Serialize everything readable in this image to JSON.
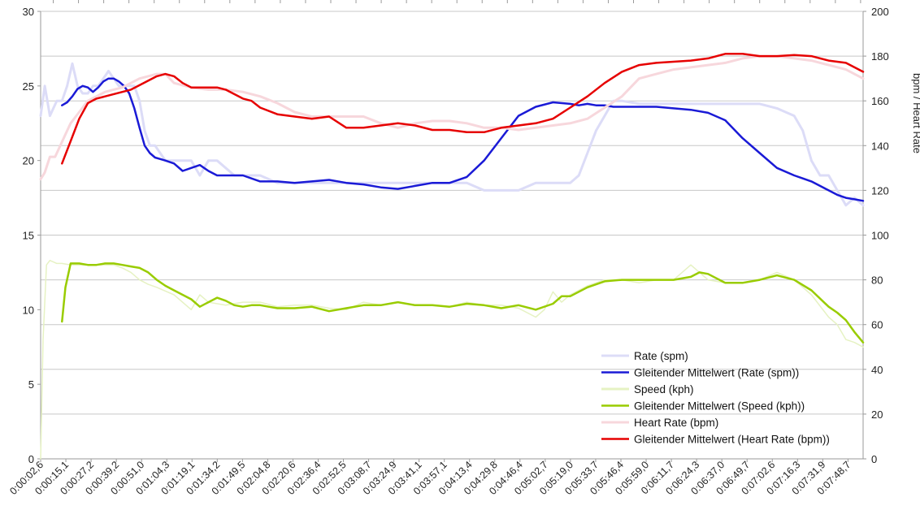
{
  "chart_data": {
    "type": "line",
    "title": "",
    "xlabel": "",
    "ylabel_left": "",
    "ylabel_right": "bpm / Heart Rate",
    "ylim_left": [
      0,
      30
    ],
    "ylim_right": [
      0,
      200
    ],
    "yticks_left": [
      "0",
      "5",
      "10",
      "15",
      "20",
      "25",
      "30"
    ],
    "yticks_right": [
      "0",
      "20",
      "40",
      "60",
      "80",
      "100",
      "120",
      "140",
      "160",
      "180",
      "200"
    ],
    "grid": true,
    "legend_position": "bottom-right",
    "x_tick_labels": [
      "0:00:02,6",
      "0:00:15,1",
      "0:00:27,2",
      "0:00:39,2",
      "0:00:51,0",
      "0:01:04,3",
      "0:01:19,1",
      "0:01:34,2",
      "0:01:49,5",
      "0:02:04,8",
      "0:02:20,6",
      "0:02:36,4",
      "0:02:52,5",
      "0:03:08,7",
      "0:03:24,9",
      "0:03:41,1",
      "0:03:57,1",
      "0:04:13,4",
      "0:04:29,8",
      "0:04:46,4",
      "0:05:02,7",
      "0:05:19,0",
      "0:05:33,7",
      "0:05:46,4",
      "0:05:59,0",
      "0:06:11,7",
      "0:06:24,3",
      "0:06:37,0",
      "0:06:49,7",
      "0:07:02,6",
      "0:07:16,3",
      "0:07:31,9",
      "0:07:48,7"
    ],
    "x_span": [
      2.6,
      480
    ],
    "series": [
      {
        "name": "Rate (spm)",
        "axis": "left",
        "color": "#dcdcf7",
        "width": 3,
        "x": [
          2.6,
          5,
          8,
          12,
          15,
          18,
          21,
          24,
          27,
          30,
          33,
          36,
          39,
          42,
          45,
          48,
          51,
          54,
          57,
          60,
          63,
          66,
          69,
          72,
          75,
          80,
          85,
          90,
          95,
          100,
          105,
          110,
          115,
          120,
          130,
          140,
          150,
          160,
          170,
          180,
          190,
          200,
          210,
          220,
          230,
          240,
          250,
          260,
          270,
          280,
          290,
          300,
          310,
          315,
          320,
          325,
          330,
          335,
          340,
          350,
          360,
          370,
          380,
          390,
          400,
          410,
          420,
          430,
          440,
          445,
          450,
          455,
          460,
          465,
          470,
          475,
          480
        ],
        "y": [
          23,
          25,
          23,
          24,
          24,
          25,
          26.5,
          25,
          24.5,
          24.5,
          25,
          25,
          25.5,
          26,
          25.5,
          25,
          25,
          25,
          25,
          24,
          22,
          21,
          21,
          20.5,
          20,
          20,
          20,
          20,
          19,
          20,
          20,
          19.5,
          19,
          19,
          19,
          18.5,
          18.5,
          18.5,
          18.5,
          18.5,
          18.5,
          18.5,
          18.5,
          18.5,
          18.5,
          18.5,
          18.5,
          18,
          18,
          18,
          18.5,
          18.5,
          18.5,
          19,
          20.5,
          22,
          23,
          24,
          24,
          23.8,
          23.8,
          23.8,
          23.8,
          23.8,
          23.8,
          23.8,
          23.8,
          23.5,
          23,
          22,
          20,
          19,
          19,
          18,
          17,
          17.5,
          17
        ]
      },
      {
        "name": "Gleitender Mittelwert (Rate (spm))",
        "axis": "left",
        "color": "#1a1ad6",
        "width": 2.5,
        "x": [
          15,
          18,
          21,
          24,
          27,
          30,
          33,
          36,
          39,
          42,
          45,
          48,
          51,
          54,
          57,
          60,
          63,
          66,
          69,
          72,
          75,
          80,
          85,
          90,
          95,
          100,
          105,
          110,
          115,
          120,
          130,
          140,
          150,
          160,
          170,
          180,
          190,
          200,
          210,
          220,
          230,
          240,
          250,
          260,
          270,
          280,
          290,
          300,
          310,
          315,
          320,
          325,
          330,
          335,
          340,
          350,
          360,
          370,
          380,
          390,
          400,
          410,
          420,
          430,
          440,
          445,
          450,
          455,
          460,
          465,
          470,
          475,
          480
        ],
        "y": [
          23.7,
          23.9,
          24.3,
          24.8,
          25,
          24.9,
          24.6,
          24.9,
          25.3,
          25.5,
          25.5,
          25.3,
          25,
          24.5,
          23.5,
          22.2,
          21,
          20.5,
          20.2,
          20.1,
          20,
          19.8,
          19.3,
          19.5,
          19.7,
          19.3,
          19,
          19,
          19,
          19,
          18.6,
          18.6,
          18.5,
          18.6,
          18.7,
          18.5,
          18.4,
          18.2,
          18.1,
          18.3,
          18.5,
          18.5,
          18.9,
          20,
          21.5,
          23,
          23.6,
          23.9,
          23.8,
          23.7,
          23.8,
          23.7,
          23.7,
          23.6,
          23.6,
          23.6,
          23.6,
          23.5,
          23.4,
          23.2,
          22.7,
          21.5,
          20.5,
          19.5,
          19,
          18.8,
          18.6,
          18.3,
          18,
          17.7,
          17.5,
          17.4,
          17.3
        ]
      },
      {
        "name": "Speed (kph)",
        "axis": "left",
        "color": "#e6f2c3",
        "width": 1.5,
        "x": [
          2.6,
          4,
          6,
          8,
          10,
          12,
          15,
          20,
          25,
          30,
          35,
          40,
          45,
          50,
          55,
          60,
          65,
          70,
          80,
          90,
          95,
          100,
          110,
          120,
          130,
          140,
          150,
          160,
          170,
          180,
          190,
          200,
          210,
          220,
          230,
          240,
          250,
          260,
          270,
          280,
          290,
          295,
          300,
          305,
          310,
          320,
          330,
          340,
          350,
          360,
          370,
          380,
          385,
          390,
          400,
          410,
          420,
          430,
          440,
          450,
          460,
          465,
          470,
          475,
          480
        ],
        "y": [
          0,
          8,
          13,
          13.3,
          13.2,
          13.1,
          13.1,
          13,
          13,
          13,
          13,
          13,
          13,
          12.8,
          12.5,
          12,
          11.7,
          11.5,
          11,
          10,
          11,
          10.5,
          10.3,
          10.5,
          10.5,
          10.2,
          10.3,
          10.3,
          10.1,
          10,
          10.5,
          10.3,
          10.5,
          10.3,
          10.3,
          10.2,
          10.5,
          10.3,
          10.3,
          10.1,
          9.5,
          10,
          11.2,
          10.5,
          11,
          11.6,
          12,
          12,
          11.8,
          12,
          12,
          13,
          12.5,
          12,
          11.8,
          11.8,
          12,
          12.5,
          12,
          11,
          9.5,
          9,
          8,
          7.8,
          7.5
        ]
      },
      {
        "name": "Gleitender Mittelwert (Speed (kph))",
        "axis": "left",
        "color": "#99cc00",
        "width": 2.5,
        "x": [
          15,
          17,
          20,
          25,
          30,
          35,
          40,
          45,
          50,
          55,
          60,
          65,
          70,
          75,
          80,
          85,
          90,
          95,
          100,
          105,
          110,
          115,
          120,
          125,
          130,
          135,
          140,
          150,
          160,
          170,
          180,
          190,
          200,
          210,
          220,
          230,
          240,
          250,
          260,
          270,
          280,
          290,
          300,
          305,
          310,
          320,
          330,
          340,
          350,
          360,
          370,
          380,
          385,
          390,
          395,
          400,
          410,
          420,
          430,
          440,
          450,
          460,
          465,
          470,
          475,
          480
        ],
        "y": [
          9.2,
          11.5,
          13.1,
          13.1,
          13,
          13,
          13.1,
          13.1,
          13,
          12.9,
          12.8,
          12.5,
          12,
          11.6,
          11.3,
          11,
          10.7,
          10.2,
          10.5,
          10.8,
          10.6,
          10.3,
          10.2,
          10.3,
          10.3,
          10.2,
          10.1,
          10.1,
          10.2,
          9.9,
          10.1,
          10.3,
          10.3,
          10.5,
          10.3,
          10.3,
          10.2,
          10.4,
          10.3,
          10.1,
          10.3,
          10,
          10.4,
          10.9,
          10.9,
          11.5,
          11.9,
          12,
          12,
          12,
          12,
          12.2,
          12.5,
          12.4,
          12.1,
          11.8,
          11.8,
          12,
          12.3,
          12,
          11.3,
          10.2,
          9.8,
          9.3,
          8.5,
          7.8
        ]
      },
      {
        "name": "Heart Rate (bpm)",
        "axis": "right",
        "color": "#f7d7dc",
        "width": 3,
        "x": [
          2.6,
          5,
          8,
          11,
          14,
          17,
          20,
          25,
          30,
          35,
          40,
          45,
          50,
          55,
          60,
          65,
          70,
          75,
          80,
          90,
          100,
          110,
          120,
          130,
          140,
          150,
          160,
          170,
          180,
          190,
          200,
          210,
          220,
          230,
          240,
          250,
          260,
          270,
          280,
          290,
          300,
          310,
          320,
          330,
          340,
          350,
          360,
          370,
          380,
          390,
          400,
          410,
          420,
          430,
          440,
          450,
          460,
          470,
          480
        ],
        "y": [
          125,
          128,
          135,
          135,
          140,
          145,
          150,
          155,
          160,
          162,
          164,
          165,
          166,
          168,
          170,
          171,
          172,
          172,
          168,
          166,
          165,
          165,
          164,
          162,
          159,
          155,
          153,
          153,
          153,
          153,
          150,
          148,
          150,
          151,
          151,
          150,
          148,
          148,
          147,
          148,
          149,
          150,
          152,
          157,
          162,
          170,
          172,
          174,
          175,
          176,
          177,
          179,
          180,
          180,
          179,
          178,
          176,
          174,
          170
        ]
      },
      {
        "name": "Gleitender Mittelwert (Heart Rate (bpm))",
        "axis": "right",
        "color": "#e60000",
        "width": 2.5,
        "x": [
          15,
          20,
          25,
          30,
          35,
          40,
          45,
          50,
          55,
          60,
          65,
          70,
          75,
          80,
          85,
          90,
          95,
          100,
          105,
          110,
          115,
          120,
          125,
          130,
          140,
          150,
          160,
          170,
          180,
          190,
          200,
          210,
          220,
          230,
          240,
          250,
          260,
          270,
          280,
          290,
          300,
          310,
          320,
          330,
          340,
          350,
          360,
          370,
          380,
          390,
          400,
          410,
          420,
          430,
          440,
          450,
          460,
          470,
          480
        ],
        "y": [
          132,
          142,
          152,
          159,
          161,
          162,
          163,
          164,
          165,
          167,
          169,
          171,
          172,
          171,
          168,
          166,
          166,
          166,
          166,
          165,
          163,
          161,
          160,
          157,
          154,
          153,
          152,
          153,
          148,
          148,
          149,
          150,
          149,
          147,
          147,
          146,
          146,
          148,
          149,
          150,
          152,
          157,
          162,
          168,
          173,
          176,
          177,
          177.5,
          178,
          179,
          181,
          181,
          180,
          180,
          180.5,
          180,
          178,
          177,
          173
        ]
      }
    ]
  },
  "legend": {
    "items": [
      {
        "label": "Rate (spm)",
        "color": "#dcdcf7"
      },
      {
        "label": "Gleitender Mittelwert (Rate (spm))",
        "color": "#1a1ad6"
      },
      {
        "label": "Speed (kph)",
        "color": "#e6f2c3"
      },
      {
        "label": "Gleitender Mittelwert (Speed (kph))",
        "color": "#99cc00"
      },
      {
        "label": "Heart Rate (bpm)",
        "color": "#f7d7dc"
      },
      {
        "label": "Gleitender Mittelwert (Heart Rate (bpm))",
        "color": "#e60000"
      }
    ]
  },
  "colors": {
    "grid": "#c8c8c8",
    "axis": "#9a9a9a",
    "background": "#ffffff"
  }
}
